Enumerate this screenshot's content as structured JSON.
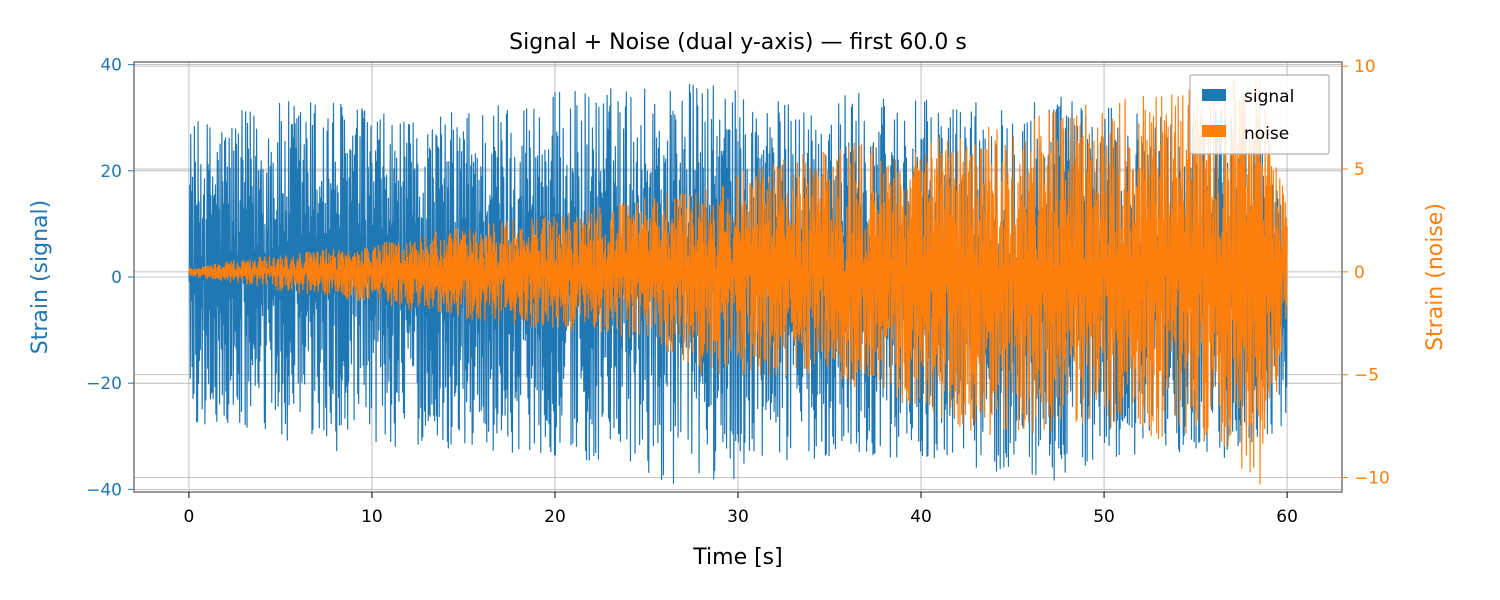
{
  "chart_data": {
    "type": "line",
    "title": "Signal + Noise (dual y-axis) — first 60.0 s",
    "xlabel": "Time [s]",
    "y_left_label": "Strain (signal)",
    "y_right_label": "Strain (noise)",
    "xlim": [
      -3,
      63
    ],
    "ylim_left": [
      -40.5,
      40.5
    ],
    "ylim_right": [
      -10.7,
      10.2
    ],
    "x_ticks": [
      0,
      10,
      20,
      30,
      40,
      50,
      60
    ],
    "x_tick_labels": [
      "0",
      "10",
      "20",
      "30",
      "40",
      "50",
      "60"
    ],
    "y_left_ticks": [
      -40,
      -20,
      0,
      20,
      40
    ],
    "y_left_tick_labels": [
      "−40",
      "−20",
      "0",
      "20",
      "40"
    ],
    "y_right_ticks": [
      -10,
      -5,
      0,
      5,
      10
    ],
    "y_right_tick_labels": [
      "−10",
      "−5",
      "0",
      "5",
      "10"
    ],
    "grid": true,
    "legend_position": "top-right",
    "colors": {
      "signal": "#1f77b4",
      "noise": "#ff7f0e"
    },
    "x_range": [
      0,
      60
    ],
    "series": [
      {
        "name": "signal",
        "axis": "left",
        "color": "#1f77b4",
        "envelope_times": [
          0,
          7.5,
          12,
          16,
          19,
          27.6,
          33,
          36,
          41,
          47.5,
          50,
          55,
          58,
          60
        ],
        "envelope_upper": [
          29,
          35,
          29,
          33,
          35,
          37,
          33,
          35,
          33,
          35,
          32,
          30,
          35,
          10
        ],
        "envelope_lower": [
          -28,
          -33,
          -32,
          -33,
          -33,
          -40,
          -35,
          -33,
          -35,
          -39,
          -35,
          -33,
          -35,
          -27
        ]
      },
      {
        "name": "noise",
        "axis": "right",
        "color": "#ff7f0e",
        "envelope_times": [
          0,
          5,
          10,
          15,
          20,
          25,
          28,
          35,
          39,
          42.5,
          48,
          52,
          56,
          58.5,
          60
        ],
        "envelope_upper": [
          0.2,
          0.9,
          1.3,
          2.2,
          2.8,
          3.6,
          4.3,
          6.3,
          6.2,
          6.8,
          8.0,
          8.7,
          9.0,
          10.0,
          3.0
        ],
        "envelope_lower": [
          -0.2,
          -0.9,
          -1.5,
          -2.3,
          -2.8,
          -3.3,
          -5.0,
          -5.2,
          -6.4,
          -8.0,
          -7.8,
          -8.1,
          -8.2,
          -10.7,
          -3.0
        ]
      }
    ]
  }
}
